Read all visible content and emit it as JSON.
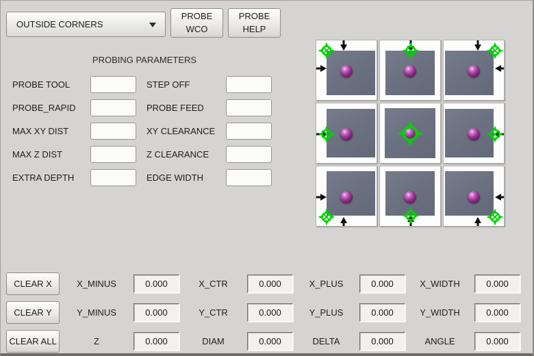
{
  "toolbar": {
    "mode_dropdown_value": "OUTSIDE CORNERS",
    "probe_wco_button": "PROBE WCO",
    "probe_help_button": "PROBE HELP"
  },
  "parameters": {
    "title": "PROBING PARAMETERS",
    "left": [
      {
        "label": "PROBE TOOL",
        "value": ""
      },
      {
        "label": "PROBE_RAPID",
        "value": ""
      },
      {
        "label": "MAX XY DIST",
        "value": ""
      },
      {
        "label": "MAX Z DIST",
        "value": ""
      },
      {
        "label": "EXTRA DEPTH",
        "value": ""
      }
    ],
    "right": [
      {
        "label": "STEP OFF",
        "value": ""
      },
      {
        "label": "PROBE FEED",
        "value": ""
      },
      {
        "label": "XY CLEARANCE",
        "value": ""
      },
      {
        "label": "Z CLEARANCE",
        "value": ""
      },
      {
        "label": "EDGE WIDTH",
        "value": ""
      }
    ]
  },
  "probe_grid": {
    "accent_green": "#00d300",
    "arrow_color": "#101010",
    "slab_color": "#6b7181",
    "ball_color": "#93338f",
    "tiles": [
      "corner-top-left",
      "edge-top",
      "corner-top-right",
      "edge-left",
      "center",
      "edge-right",
      "corner-bottom-left",
      "edge-bottom",
      "corner-bottom-right"
    ]
  },
  "results": {
    "clear_buttons": [
      "CLEAR X",
      "CLEAR Y",
      "CLEAR ALL"
    ],
    "rows": [
      [
        {
          "label": "X_MINUS",
          "value": "0.000"
        },
        {
          "label": "X_CTR",
          "value": "0.000"
        },
        {
          "label": "X_PLUS",
          "value": "0.000"
        },
        {
          "label": "X_WIDTH",
          "value": "0.000"
        }
      ],
      [
        {
          "label": "Y_MINUS",
          "value": "0.000"
        },
        {
          "label": "Y_CTR",
          "value": "0.000"
        },
        {
          "label": "Y_PLUS",
          "value": "0.000"
        },
        {
          "label": "Y_WIDTH",
          "value": "0.000"
        }
      ],
      [
        {
          "label": "Z",
          "value": "0.000"
        },
        {
          "label": "DIAM",
          "value": "0.000"
        },
        {
          "label": "DELTA",
          "value": "0.000"
        },
        {
          "label": "ANGLE",
          "value": "0.000"
        }
      ]
    ]
  }
}
